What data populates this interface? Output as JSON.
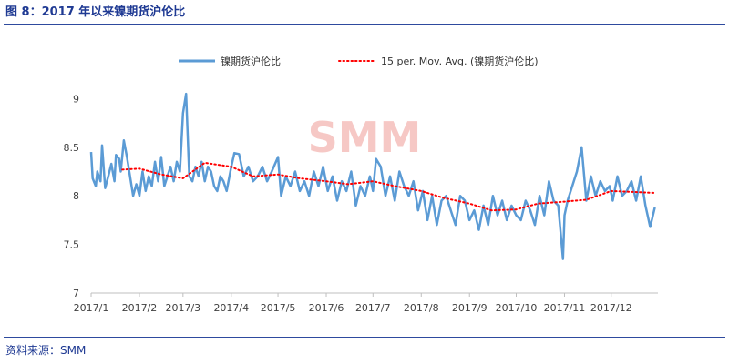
{
  "header": {
    "title": "图 8：2017 年以来镍期货沪伦比"
  },
  "footer": {
    "source": "资料来源：SMM"
  },
  "watermark": {
    "text": "SMM"
  },
  "colors": {
    "series": "#5b9bd5",
    "trend": "#ff0000",
    "axis": "#bfbfbf",
    "watermark": "#f4b6b2"
  },
  "chart_data": {
    "type": "line",
    "title": "",
    "xlabel": "",
    "ylabel": "",
    "ylim": [
      7,
      9.5
    ],
    "yticks": [
      7,
      7.5,
      8,
      8.5,
      9
    ],
    "ytick_labels": [
      "7",
      "7.5",
      "8",
      "8.5",
      "9"
    ],
    "xlim": [
      "2017-01-01",
      "2017-12-31"
    ],
    "xticks": [
      "2017-01-01",
      "2017-02-01",
      "2017-03-01",
      "2017-04-01",
      "2017-05-01",
      "2017-06-01",
      "2017-07-01",
      "2017-08-01",
      "2017-09-01",
      "2017-10-01",
      "2017-11-01",
      "2017-12-01"
    ],
    "xtick_labels": [
      "2017/1",
      "2017/2",
      "2017/3",
      "2017/4",
      "2017/5",
      "2017/6",
      "2017/7",
      "2017/8",
      "2017/9",
      "2017/10",
      "2017/11",
      "2017/12"
    ],
    "legend_position": "top",
    "grid": false,
    "series": [
      {
        "name": "镍期货沪伦比",
        "style": "solid",
        "x": [
          "2017-01-01",
          "2017-01-02",
          "2017-01-04",
          "2017-01-05",
          "2017-01-07",
          "2017-01-08",
          "2017-01-10",
          "2017-01-12",
          "2017-01-14",
          "2017-01-16",
          "2017-01-17",
          "2017-01-19",
          "2017-01-20",
          "2017-01-22",
          "2017-01-24",
          "2017-01-26",
          "2017-01-28",
          "2017-01-30",
          "2017-02-01",
          "2017-02-03",
          "2017-02-05",
          "2017-02-07",
          "2017-02-09",
          "2017-02-11",
          "2017-02-13",
          "2017-02-15",
          "2017-02-17",
          "2017-02-19",
          "2017-02-21",
          "2017-02-23",
          "2017-02-25",
          "2017-02-27",
          "2017-03-01",
          "2017-03-03",
          "2017-03-05",
          "2017-03-07",
          "2017-03-09",
          "2017-03-11",
          "2017-03-13",
          "2017-03-15",
          "2017-03-17",
          "2017-03-19",
          "2017-03-21",
          "2017-03-23",
          "2017-03-25",
          "2017-03-27",
          "2017-03-29",
          "2017-04-01",
          "2017-04-03",
          "2017-04-06",
          "2017-04-09",
          "2017-04-12",
          "2017-04-15",
          "2017-04-18",
          "2017-04-21",
          "2017-04-24",
          "2017-04-27",
          "2017-05-01",
          "2017-05-03",
          "2017-05-06",
          "2017-05-09",
          "2017-05-12",
          "2017-05-15",
          "2017-05-18",
          "2017-05-21",
          "2017-05-24",
          "2017-05-27",
          "2017-05-30",
          "2017-06-02",
          "2017-06-05",
          "2017-06-08",
          "2017-06-11",
          "2017-06-14",
          "2017-06-17",
          "2017-06-20",
          "2017-06-23",
          "2017-06-26",
          "2017-06-29",
          "2017-07-01",
          "2017-07-03",
          "2017-07-06",
          "2017-07-09",
          "2017-07-12",
          "2017-07-15",
          "2017-07-18",
          "2017-07-21",
          "2017-07-24",
          "2017-07-27",
          "2017-07-30",
          "2017-08-02",
          "2017-08-05",
          "2017-08-08",
          "2017-08-11",
          "2017-08-14",
          "2017-08-17",
          "2017-08-20",
          "2017-08-23",
          "2017-08-26",
          "2017-08-29",
          "2017-09-01",
          "2017-09-04",
          "2017-09-07",
          "2017-09-10",
          "2017-09-13",
          "2017-09-16",
          "2017-09-19",
          "2017-09-22",
          "2017-09-25",
          "2017-09-28",
          "2017-10-01",
          "2017-10-04",
          "2017-10-07",
          "2017-10-10",
          "2017-10-13",
          "2017-10-16",
          "2017-10-19",
          "2017-10-22",
          "2017-10-25",
          "2017-10-28",
          "2017-10-31",
          "2017-11-01",
          "2017-11-03",
          "2017-11-06",
          "2017-11-09",
          "2017-11-12",
          "2017-11-15",
          "2017-11-18",
          "2017-11-21",
          "2017-11-24",
          "2017-11-27",
          "2017-11-30",
          "2017-12-02",
          "2017-12-05",
          "2017-12-08",
          "2017-12-11",
          "2017-12-14",
          "2017-12-17",
          "2017-12-20",
          "2017-12-23",
          "2017-12-26",
          "2017-12-29"
        ],
        "y": [
          8.45,
          8.18,
          8.1,
          8.25,
          8.15,
          8.52,
          8.08,
          8.2,
          8.33,
          8.15,
          8.42,
          8.38,
          8.25,
          8.57,
          8.4,
          8.2,
          8.0,
          8.12,
          8.0,
          8.25,
          8.05,
          8.2,
          8.1,
          8.35,
          8.15,
          8.4,
          8.1,
          8.2,
          8.3,
          8.15,
          8.35,
          8.25,
          8.85,
          9.05,
          8.2,
          8.15,
          8.3,
          8.2,
          8.35,
          8.15,
          8.3,
          8.25,
          8.1,
          8.05,
          8.2,
          8.15,
          8.05,
          8.3,
          8.44,
          8.43,
          8.2,
          8.3,
          8.15,
          8.2,
          8.3,
          8.15,
          8.25,
          8.4,
          8.0,
          8.2,
          8.1,
          8.25,
          8.05,
          8.15,
          8.0,
          8.25,
          8.1,
          8.3,
          8.05,
          8.2,
          7.95,
          8.15,
          8.05,
          8.25,
          7.9,
          8.1,
          8.0,
          8.2,
          8.05,
          8.38,
          8.3,
          8.0,
          8.2,
          7.95,
          8.25,
          8.1,
          8.0,
          8.15,
          7.85,
          8.05,
          7.75,
          8.0,
          7.7,
          7.95,
          8.0,
          7.85,
          7.7,
          8.0,
          7.95,
          7.75,
          7.85,
          7.65,
          7.9,
          7.7,
          8.0,
          7.8,
          7.95,
          7.75,
          7.9,
          7.8,
          7.75,
          7.95,
          7.85,
          7.7,
          8.0,
          7.8,
          8.15,
          7.95,
          7.9,
          7.35,
          7.8,
          7.95,
          8.1,
          8.25,
          8.5,
          7.95,
          8.2,
          8.0,
          8.15,
          8.05,
          8.1,
          7.95,
          8.2,
          8.0,
          8.05,
          8.15,
          7.95,
          8.2,
          7.9,
          7.68,
          7.88
        ]
      },
      {
        "name": "15 per. Mov. Avg. (镍期货沪伦比)",
        "style": "dotted",
        "x": [
          "2017-01-21",
          "2017-02-01",
          "2017-02-15",
          "2017-03-01",
          "2017-03-15",
          "2017-04-01",
          "2017-04-15",
          "2017-05-01",
          "2017-05-15",
          "2017-06-01",
          "2017-06-15",
          "2017-07-01",
          "2017-07-15",
          "2017-08-01",
          "2017-08-15",
          "2017-09-01",
          "2017-09-15",
          "2017-10-01",
          "2017-10-15",
          "2017-11-01",
          "2017-11-15",
          "2017-12-01",
          "2017-12-15",
          "2017-12-29"
        ],
        "y": [
          8.27,
          8.28,
          8.22,
          8.18,
          8.34,
          8.3,
          8.2,
          8.22,
          8.18,
          8.15,
          8.12,
          8.15,
          8.1,
          8.05,
          7.98,
          7.92,
          7.85,
          7.86,
          7.92,
          7.94,
          7.96,
          8.05,
          8.04,
          8.03
        ]
      }
    ]
  }
}
